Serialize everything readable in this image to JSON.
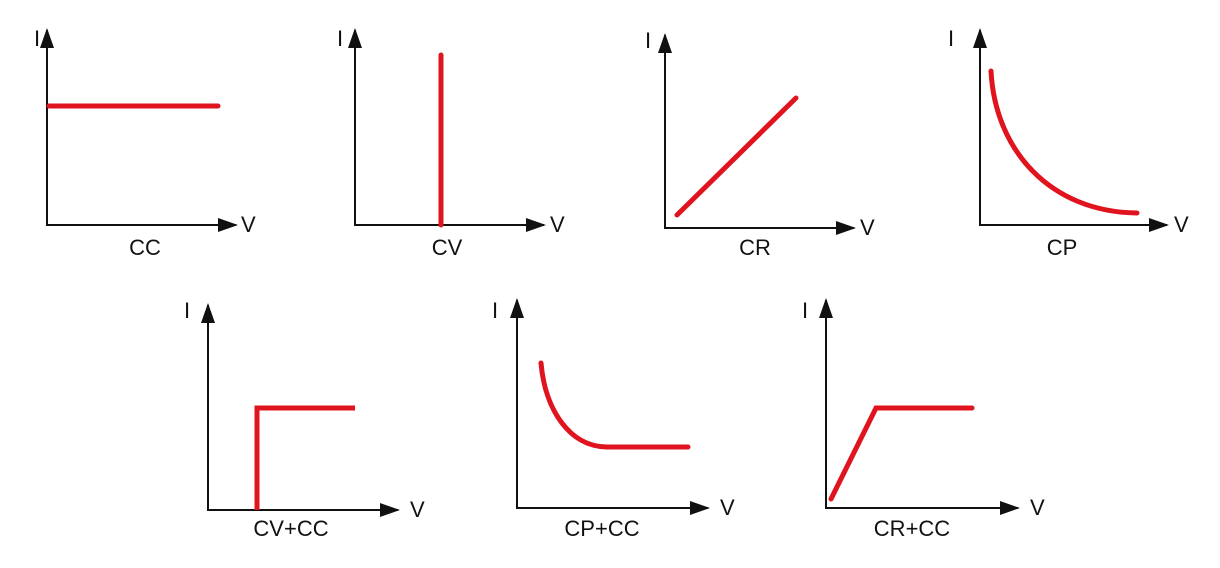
{
  "panels": [
    {
      "label": "CC",
      "y_axis": "I",
      "x_axis": "V"
    },
    {
      "label": "CV",
      "y_axis": "I",
      "x_axis": "V"
    },
    {
      "label": "CR",
      "y_axis": "I",
      "x_axis": "V"
    },
    {
      "label": "CP",
      "y_axis": "I",
      "x_axis": "V"
    },
    {
      "label": "CV+CC",
      "y_axis": "I",
      "x_axis": "V"
    },
    {
      "label": "CP+CC",
      "y_axis": "I",
      "x_axis": "V"
    },
    {
      "label": "CR+CC",
      "y_axis": "I",
      "x_axis": "V"
    }
  ]
}
